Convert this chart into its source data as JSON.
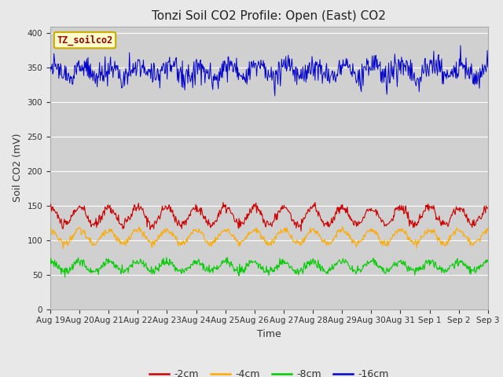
{
  "title": "Tonzi Soil CO2 Profile: Open (East) CO2",
  "xlabel": "Time",
  "ylabel": "Soil CO2 (mV)",
  "ylim": [
    0,
    410
  ],
  "yticks": [
    0,
    50,
    100,
    150,
    200,
    250,
    300,
    350,
    400
  ],
  "xlim": [
    0,
    15
  ],
  "background_color": "#e8e8e8",
  "plot_bg_color": "#d0d0d0",
  "series_2cm_color": "#cc0000",
  "series_4cm_color": "#ffaa00",
  "series_8cm_color": "#00cc00",
  "series_16cm_color": "#0000cc",
  "legend_labels": [
    "-2cm",
    "-4cm",
    "-8cm",
    "-16cm"
  ],
  "legend_colors": [
    "#cc0000",
    "#ffaa00",
    "#00cc00",
    "#0000cc"
  ],
  "annotation_text": "TZ_soilco2",
  "annotation_color": "#990000",
  "annotation_bg": "#ffffcc",
  "annotation_border": "#ccaa00",
  "title_fontsize": 11,
  "axis_fontsize": 9,
  "tick_fontsize": 7.5,
  "legend_fontsize": 9
}
